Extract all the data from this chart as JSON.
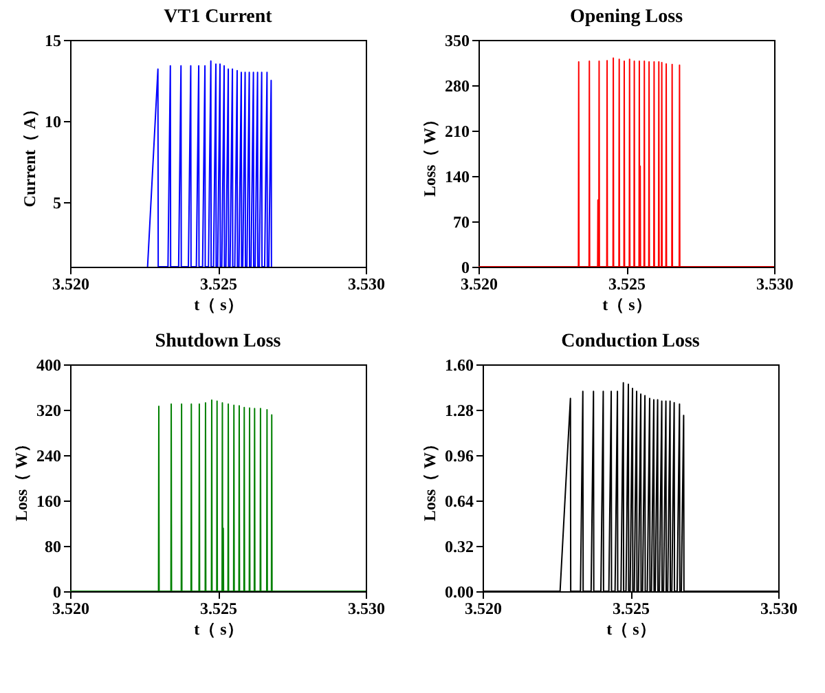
{
  "chart_data": [
    {
      "type": "line",
      "title": "VT1 Current",
      "xlabel": "t（ s）",
      "ylabel": "Current（ A）",
      "xlim": [
        3.52,
        3.53
      ],
      "xticks": [
        {
          "value": 3.52,
          "label": "3.520"
        },
        {
          "value": 3.525,
          "label": "3.525"
        },
        {
          "value": 3.53,
          "label": "3.530"
        }
      ],
      "ylim": [
        1,
        15
      ],
      "yticks": [
        5,
        10,
        15
      ],
      "x": [
        3.52262,
        3.52297,
        3.52298,
        3.52331,
        3.52339,
        3.5234,
        3.52367,
        3.52375,
        3.52376,
        3.524,
        3.52408,
        3.52409,
        3.52427,
        3.52435,
        3.52436,
        3.52448,
        3.52456,
        3.52457,
        3.52468,
        3.52476,
        3.52477,
        3.52485,
        3.52493,
        3.52494,
        3.52499,
        3.52507,
        3.52508,
        3.52513,
        3.52521,
        3.52522,
        3.52527,
        3.52535,
        3.52536,
        3.52541,
        3.52549,
        3.5255,
        3.52557,
        3.52565,
        3.52566,
        3.52571,
        3.52579,
        3.5258,
        3.52584,
        3.52592,
        3.52593,
        3.52598,
        3.52606,
        3.52607,
        3.52612,
        3.5262,
        3.52621,
        3.52626,
        3.52634,
        3.52635,
        3.5264,
        3.52648,
        3.52649,
        3.52658,
        3.52666,
        3.52667,
        3.52672,
        3.5268,
        3.52681
      ],
      "series": [
        {
          "color": "#0000ff",
          "values": [
            1,
            13.2,
            1,
            1,
            13.4,
            1,
            1,
            13.4,
            1,
            1,
            13.4,
            1,
            1,
            13.4,
            1,
            1,
            13.4,
            1,
            1,
            13.7,
            1,
            1,
            13.5,
            1,
            1,
            13.5,
            1,
            1,
            13.4,
            1,
            1,
            13.2,
            1,
            1,
            13.2,
            1,
            1,
            13.1,
            1,
            1,
            13.0,
            1,
            1,
            13.0,
            1,
            1,
            13.0,
            1,
            1,
            13.0,
            1,
            1,
            13.0,
            1,
            1,
            13.0,
            1,
            1,
            13.0,
            1,
            1,
            12.5,
            1
          ]
        }
      ]
    },
    {
      "type": "line",
      "title": "Opening Loss",
      "xlabel": "t（ s）",
      "ylabel": "Loss（ W）",
      "xlim": [
        3.52,
        3.53
      ],
      "xticks": [
        {
          "value": 3.52,
          "label": "3.520"
        },
        {
          "value": 3.525,
          "label": "3.525"
        },
        {
          "value": 3.53,
          "label": "3.530"
        }
      ],
      "ylim": [
        0,
        350
      ],
      "yticks": [
        0,
        70,
        140,
        210,
        280,
        350
      ],
      "x": [
        3.52,
        3.52338,
        3.52339,
        3.5234,
        3.52374,
        3.52375,
        3.52376,
        3.52403,
        3.52404,
        3.52405,
        3.52407,
        3.52408,
        3.52409,
        3.52434,
        3.52435,
        3.52436,
        3.52455,
        3.52456,
        3.52457,
        3.52475,
        3.52476,
        3.52477,
        3.52492,
        3.52493,
        3.52494,
        3.5251,
        3.52511,
        3.52512,
        3.52526,
        3.52527,
        3.52528,
        3.52543,
        3.52544,
        3.52545,
        3.52546,
        3.52547,
        3.52548,
        3.5256,
        3.52561,
        3.52562,
        3.52576,
        3.52577,
        3.52578,
        3.52593,
        3.52594,
        3.52595,
        3.52609,
        3.5261,
        3.52611,
        3.52619,
        3.5262,
        3.52621,
        3.52634,
        3.52635,
        3.52636,
        3.52654,
        3.52655,
        3.52656,
        3.52679,
        3.5268,
        3.52681,
        3.53
      ],
      "series": [
        {
          "color": "#ff0000",
          "values": [
            0,
            0,
            316,
            0,
            0,
            317,
            0,
            0,
            103,
            0,
            0,
            317,
            0,
            0,
            318,
            0,
            0,
            322,
            0,
            0,
            320,
            0,
            0,
            317,
            0,
            0,
            320,
            0,
            0,
            317,
            0,
            0,
            317,
            0,
            0,
            155,
            0,
            0,
            317,
            0,
            0,
            316,
            0,
            0,
            316,
            0,
            0,
            316,
            0,
            0,
            315,
            0,
            0,
            313,
            0,
            0,
            312,
            0,
            0,
            311,
            0,
            0
          ]
        }
      ]
    },
    {
      "type": "line",
      "title": "Shutdown Loss",
      "xlabel": "t（ s）",
      "ylabel": "Loss（ W）",
      "xlim": [
        3.52,
        3.53
      ],
      "xticks": [
        {
          "value": 3.52,
          "label": "3.520"
        },
        {
          "value": 3.525,
          "label": "3.525"
        },
        {
          "value": 3.53,
          "label": "3.530"
        }
      ],
      "ylim": [
        0,
        400
      ],
      "yticks": [
        0,
        80,
        160,
        240,
        320,
        400
      ],
      "x": [
        3.52,
        3.52299,
        3.523,
        3.52301,
        3.52341,
        3.52342,
        3.52343,
        3.52376,
        3.52377,
        3.52378,
        3.52409,
        3.5241,
        3.52411,
        3.52436,
        3.52437,
        3.52438,
        3.52457,
        3.52458,
        3.52459,
        3.52478,
        3.52479,
        3.5248,
        3.52496,
        3.52497,
        3.52498,
        3.52514,
        3.52515,
        3.52516,
        3.52517,
        3.52518,
        3.52519,
        3.52534,
        3.52535,
        3.52536,
        3.52553,
        3.52554,
        3.52555,
        3.52571,
        3.52572,
        3.52573,
        3.52588,
        3.52589,
        3.5259,
        3.52606,
        3.52607,
        3.52608,
        3.52623,
        3.52624,
        3.52625,
        3.52643,
        3.52644,
        3.52645,
        3.52665,
        3.52666,
        3.52667,
        3.52681,
        3.52682,
        3.52683,
        3.53
      ],
      "series": [
        {
          "color": "#008000",
          "values": [
            0,
            0,
            326,
            0,
            0,
            330,
            0,
            0,
            330,
            0,
            0,
            330,
            0,
            0,
            330,
            0,
            0,
            332,
            0,
            0,
            337,
            0,
            0,
            335,
            0,
            0,
            332,
            0,
            0,
            111,
            0,
            0,
            330,
            0,
            0,
            328,
            0,
            0,
            327,
            0,
            0,
            324,
            0,
            0,
            323,
            0,
            0,
            322,
            0,
            0,
            322,
            0,
            0,
            320,
            0,
            0,
            311,
            0,
            0
          ]
        }
      ]
    },
    {
      "type": "line",
      "title": "Conduction Loss",
      "xlabel": "t（ s）",
      "ylabel": "Loss（ W）",
      "xlim": [
        3.52,
        3.53
      ],
      "xticks": [
        {
          "value": 3.52,
          "label": "3.520"
        },
        {
          "value": 3.525,
          "label": "3.525"
        },
        {
          "value": 3.53,
          "label": "3.530"
        }
      ],
      "ylim": [
        0,
        1.6
      ],
      "yticks": [
        {
          "value": 0,
          "label": "0.00"
        },
        {
          "value": 0.32,
          "label": "0.32"
        },
        {
          "value": 0.64,
          "label": "0.64"
        },
        {
          "value": 0.96,
          "label": "0.96"
        },
        {
          "value": 1.28,
          "label": "1.28"
        },
        {
          "value": 1.6,
          "label": "1.60"
        }
      ],
      "x": [
        3.52,
        3.52262,
        3.52297,
        3.52298,
        3.52331,
        3.52339,
        3.5234,
        3.52367,
        3.52375,
        3.52376,
        3.524,
        3.52408,
        3.52409,
        3.52427,
        3.52435,
        3.52436,
        3.52448,
        3.52456,
        3.52457,
        3.52468,
        3.52476,
        3.52477,
        3.52485,
        3.52493,
        3.52494,
        3.52499,
        3.52507,
        3.52508,
        3.52513,
        3.52521,
        3.52522,
        3.52527,
        3.52535,
        3.52536,
        3.52541,
        3.52549,
        3.5255,
        3.52557,
        3.52565,
        3.52566,
        3.52571,
        3.52579,
        3.5258,
        3.52584,
        3.52592,
        3.52593,
        3.52598,
        3.52606,
        3.52607,
        3.52612,
        3.5262,
        3.52621,
        3.52626,
        3.52634,
        3.52635,
        3.5264,
        3.52648,
        3.52649,
        3.52658,
        3.52666,
        3.52667,
        3.52672,
        3.5268,
        3.52681,
        3.53
      ],
      "series": [
        {
          "color": "#000000",
          "values": [
            0,
            0,
            1.36,
            0,
            0,
            1.41,
            0,
            0,
            1.41,
            0,
            0,
            1.41,
            0,
            0,
            1.41,
            0,
            0,
            1.41,
            0,
            0,
            1.47,
            0,
            0,
            1.46,
            0,
            0,
            1.43,
            0,
            0,
            1.41,
            0,
            0,
            1.39,
            0,
            0,
            1.38,
            0,
            0,
            1.36,
            0,
            0,
            1.35,
            0,
            0,
            1.35,
            0,
            0,
            1.34,
            0,
            0,
            1.34,
            0,
            0,
            1.34,
            0,
            0,
            1.33,
            0,
            0,
            1.32,
            0,
            0,
            1.24,
            0,
            0
          ]
        }
      ]
    }
  ]
}
